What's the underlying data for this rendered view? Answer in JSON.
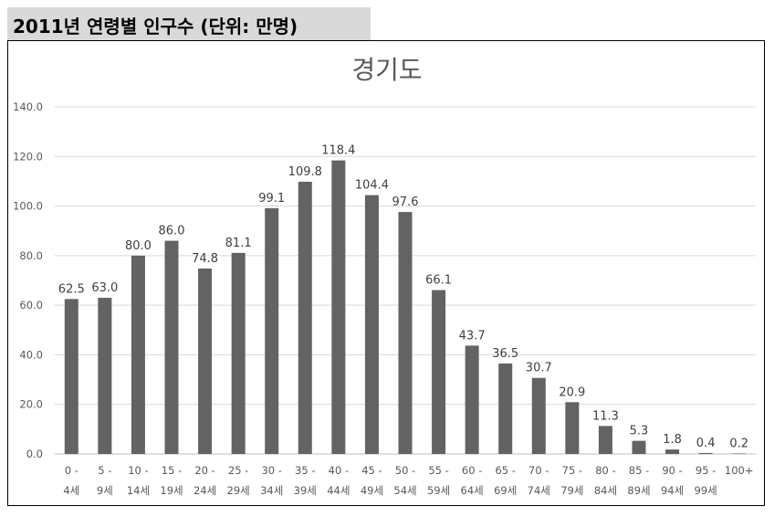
{
  "header": {
    "title": "2011년 연령별 인구수 (단위: 만명)"
  },
  "chart_data": {
    "type": "bar",
    "title": "경기도",
    "xlabel": "",
    "ylabel": "",
    "ylim": [
      0,
      140
    ],
    "ytick_step": 20,
    "yticks": [
      "0.0",
      "20.0",
      "40.0",
      "60.0",
      "80.0",
      "100.0",
      "120.0",
      "140.0"
    ],
    "grid": true,
    "bar_color": "#636363",
    "categories": [
      [
        "0 -",
        "4세"
      ],
      [
        "5 -",
        "9세"
      ],
      [
        "10 -",
        "14세"
      ],
      [
        "15 -",
        "19세"
      ],
      [
        "20 -",
        "24세"
      ],
      [
        "25 -",
        "29세"
      ],
      [
        "30 -",
        "34세"
      ],
      [
        "35 -",
        "39세"
      ],
      [
        "40 -",
        "44세"
      ],
      [
        "45 -",
        "49세"
      ],
      [
        "50 -",
        "54세"
      ],
      [
        "55 -",
        "59세"
      ],
      [
        "60 -",
        "64세"
      ],
      [
        "65 -",
        "69세"
      ],
      [
        "70 -",
        "74세"
      ],
      [
        "75 -",
        "79세"
      ],
      [
        "80 -",
        "84세"
      ],
      [
        "85 -",
        "89세"
      ],
      [
        "90 -",
        "94세"
      ],
      [
        "95 -",
        "99세"
      ],
      [
        "100+",
        ""
      ]
    ],
    "values": [
      62.5,
      63.0,
      80.0,
      86.0,
      74.8,
      81.1,
      99.1,
      109.8,
      118.4,
      104.4,
      97.6,
      66.1,
      43.7,
      36.5,
      30.7,
      20.9,
      11.3,
      5.3,
      1.8,
      0.4,
      0.2
    ],
    "labels": [
      "62.5",
      "63.0",
      "80.0",
      "86.0",
      "74.8",
      "81.1",
      "99.1",
      "109.8",
      "118.4",
      "104.4",
      "97.6",
      "66.1",
      "43.7",
      "36.5",
      "30.7",
      "20.9",
      "11.3",
      "5.3",
      "1.8",
      "0.4",
      "0.2"
    ]
  }
}
